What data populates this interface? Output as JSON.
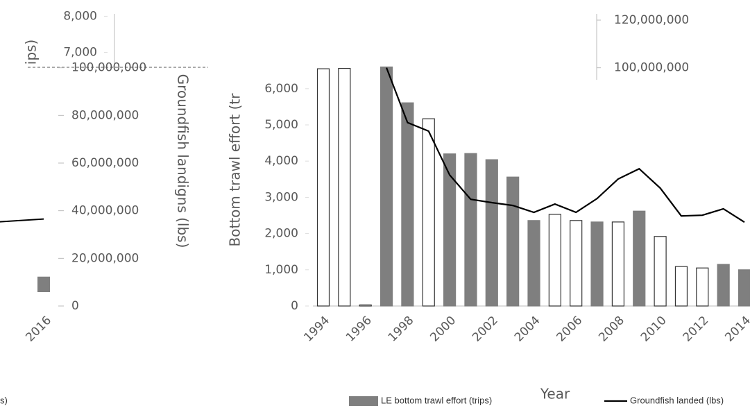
{
  "chart_data": {
    "type": "bar_line",
    "y_label": "Bottom trawl effort (tr",
    "y_label_tail": "ips)",
    "y2_label": "Groundfish landigns (lbs)",
    "x_label": "Year",
    "categories": [
      "1994",
      null,
      "1996",
      null,
      "1998",
      null,
      "2000",
      null,
      "2002",
      null,
      "2004",
      null,
      "2006",
      null,
      "2008",
      null,
      "2010",
      null,
      "2012",
      null,
      "2014"
    ],
    "series": [
      {
        "name": "LE bottom trawl effort (trips)",
        "color": "#7f7f7f",
        "hollow": [
          true,
          true,
          true,
          false,
          false,
          true,
          false,
          false,
          false,
          false,
          false,
          true,
          true,
          false,
          true,
          false,
          true,
          true,
          true,
          false,
          false
        ],
        "values": [
          6550,
          6560,
          30,
          6600,
          5610,
          5170,
          4200,
          4210,
          4040,
          3560,
          2360,
          2530,
          2360,
          2320,
          2320,
          2620,
          1920,
          1090,
          1050,
          1150,
          1000
        ]
      },
      {
        "name": "Groundfish landed (lbs)",
        "color": "#000000",
        "axis": "y2",
        "values": [
          null,
          null,
          null,
          100000000,
          77000000,
          73400000,
          55000000,
          44800000,
          43400000,
          42200000,
          39300000,
          42800000,
          39300000,
          45100000,
          53300000,
          57600000,
          49500000,
          37800000,
          38100000,
          40800000,
          35200000
        ]
      }
    ],
    "ylim": [
      0,
      8000
    ],
    "yticks": [
      0,
      {
        "value": 1000,
        "label": "1,000"
      },
      {
        "value": 2000,
        "label": "2,000"
      },
      {
        "value": 3000,
        "label": "3,000"
      },
      {
        "value": 4000,
        "label": "4,000"
      },
      {
        "value": 5000,
        "label": "5,000"
      },
      {
        "value": 6000,
        "label": "6,000"
      },
      {
        "value": 7000,
        "label": "7,000"
      },
      {
        "value": 8000,
        "label": "8,000"
      }
    ],
    "y2lim": [
      0,
      120000000
    ],
    "y2ticks": [
      0,
      {
        "value": 20000000,
        "label": "20,000,000"
      },
      {
        "value": 40000000,
        "label": "40,000,000"
      },
      {
        "value": 60000000,
        "label": "60,000,000"
      },
      {
        "value": 80000000,
        "label": "80,000,000"
      },
      {
        "value": 100000000,
        "label": "100,000,000"
      },
      {
        "value": 120000000,
        "label": "120,000,000"
      }
    ],
    "fragment": {
      "categories": [
        null,
        "2016"
      ],
      "values": [
        830,
        810
      ],
      "line_values": [
        35000000,
        36500000
      ],
      "legend_text": "s)"
    }
  }
}
